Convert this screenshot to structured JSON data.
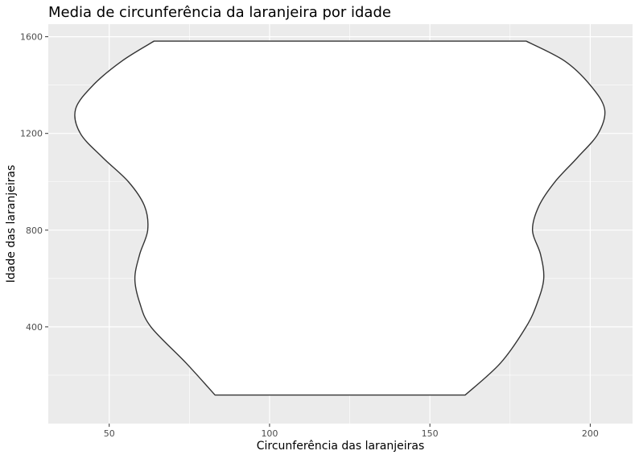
{
  "chart_data": {
    "type": "violin",
    "title": "Media de circunferência da laranjeira por idade",
    "xlabel": "Circunferência das laranjeiras",
    "ylabel": "Idade das laranjeiras",
    "xlim": [
      31,
      213.2
    ],
    "ylim": [
      0,
      1652
    ],
    "x_ticks": [
      50,
      100,
      150,
      200
    ],
    "x_tick_labels": [
      "50",
      "100",
      "150",
      "200"
    ],
    "y_ticks": [
      400,
      800,
      1200,
      1600
    ],
    "y_tick_labels": [
      "400",
      "800",
      "1200",
      "1600"
    ],
    "grid": true,
    "fill_color": "#ffffff",
    "outline_color": "#333333",
    "panel_color": "#ebebeb",
    "grid_color": "#ffffff",
    "violin": {
      "y_min": 118,
      "y_max": 1582,
      "profile": [
        {
          "y": 118,
          "left": 83.0,
          "right": 161.0
        },
        {
          "y": 250,
          "left": 74.0,
          "right": 172.0
        },
        {
          "y": 400,
          "left": 63.0,
          "right": 180.0
        },
        {
          "y": 500,
          "left": 59.5,
          "right": 183.5
        },
        {
          "y": 600,
          "left": 58.0,
          "right": 185.5
        },
        {
          "y": 700,
          "left": 59.5,
          "right": 184.5
        },
        {
          "y": 800,
          "left": 62.0,
          "right": 182.0
        },
        {
          "y": 900,
          "left": 61.0,
          "right": 184.0
        },
        {
          "y": 1000,
          "left": 56.0,
          "right": 189.0
        },
        {
          "y": 1100,
          "left": 48.0,
          "right": 196.0
        },
        {
          "y": 1200,
          "left": 41.0,
          "right": 202.5
        },
        {
          "y": 1300,
          "left": 39.5,
          "right": 204.5
        },
        {
          "y": 1400,
          "left": 45.0,
          "right": 200.0
        },
        {
          "y": 1500,
          "left": 54.0,
          "right": 192.0
        },
        {
          "y": 1582,
          "left": 64.0,
          "right": 180.0
        }
      ]
    }
  }
}
